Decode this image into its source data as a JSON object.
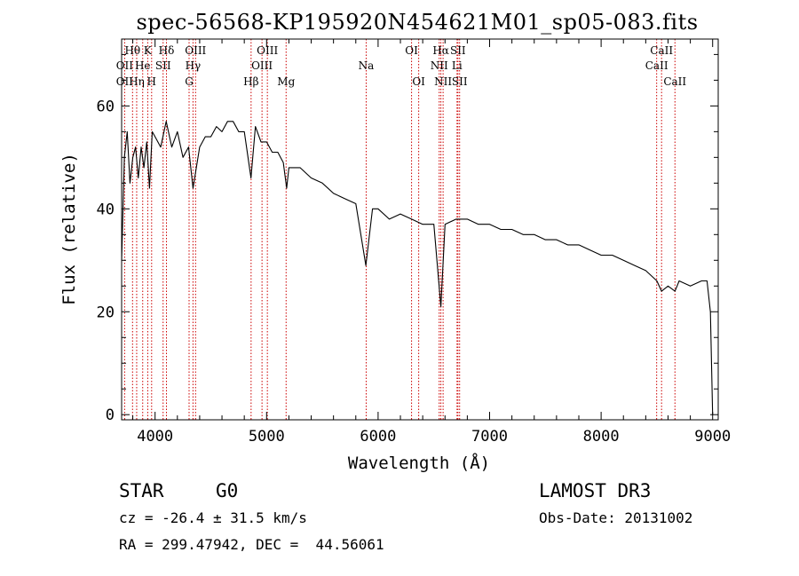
{
  "chart_data": {
    "type": "line",
    "title": "spec-56568-KP195920N454621M01_sp05-083.fits",
    "xlabel": "Wavelength (Å)",
    "ylabel": "Flux (relative)",
    "xlim": [
      3700,
      9050
    ],
    "ylim": [
      -1,
      73
    ],
    "x_ticks": [
      4000,
      5000,
      6000,
      7000,
      8000,
      9000
    ],
    "y_ticks": [
      0,
      20,
      40,
      60
    ],
    "series": [
      {
        "name": "flux",
        "x": [
          3700,
          3725,
          3750,
          3775,
          3800,
          3825,
          3850,
          3875,
          3900,
          3925,
          3950,
          3975,
          4000,
          4050,
          4100,
          4150,
          4200,
          4250,
          4300,
          4340,
          4400,
          4450,
          4500,
          4550,
          4600,
          4650,
          4700,
          4750,
          4800,
          4860,
          4900,
          4950,
          5000,
          5050,
          5100,
          5150,
          5180,
          5200,
          5300,
          5400,
          5500,
          5600,
          5700,
          5800,
          5890,
          5950,
          6000,
          6100,
          6200,
          6300,
          6400,
          6500,
          6563,
          6600,
          6700,
          6800,
          6900,
          7000,
          7100,
          7200,
          7300,
          7400,
          7500,
          7600,
          7700,
          7800,
          7900,
          8000,
          8100,
          8200,
          8300,
          8400,
          8500,
          8542,
          8600,
          8662,
          8700,
          8800,
          8900,
          8950,
          8980,
          9000
        ],
        "y": [
          30,
          50,
          55,
          45,
          50,
          52,
          46,
          52,
          48,
          53,
          44,
          55,
          54,
          52,
          57,
          52,
          55,
          50,
          52,
          44,
          52,
          54,
          54,
          56,
          55,
          57,
          57,
          55,
          55,
          46,
          56,
          53,
          53,
          51,
          51,
          49,
          44,
          48,
          48,
          46,
          45,
          43,
          42,
          41,
          29,
          40,
          40,
          38,
          39,
          38,
          37,
          37,
          21,
          37,
          38,
          38,
          37,
          37,
          36,
          36,
          35,
          35,
          34,
          34,
          33,
          33,
          32,
          31,
          31,
          30,
          29,
          28,
          26,
          24,
          25,
          24,
          26,
          25,
          26,
          26,
          20,
          0
        ]
      }
    ],
    "spectral_lines": [
      {
        "label": "Hθ",
        "wavelength": 3798,
        "row": 1
      },
      {
        "label": "OII",
        "wavelength": 3727,
        "row": 2
      },
      {
        "label": "OII",
        "wavelength": 3727,
        "row": 3
      },
      {
        "label": "Hη",
        "wavelength": 3835,
        "row": 3
      },
      {
        "label": "K",
        "wavelength": 3934,
        "row": 1
      },
      {
        "label": "He",
        "wavelength": 3889,
        "row": 2
      },
      {
        "label": "H",
        "wavelength": 3969,
        "row": 3
      },
      {
        "label": "SII",
        "wavelength": 4072,
        "row": 2
      },
      {
        "label": "Hδ",
        "wavelength": 4102,
        "row": 1
      },
      {
        "label": "OIII",
        "wavelength": 4363,
        "row": 1
      },
      {
        "label": "Hγ",
        "wavelength": 4340,
        "row": 2
      },
      {
        "label": "G",
        "wavelength": 4305,
        "row": 3
      },
      {
        "label": "Hβ",
        "wavelength": 4861,
        "row": 3
      },
      {
        "label": "OIII",
        "wavelength": 5007,
        "row": 1
      },
      {
        "label": "OIII",
        "wavelength": 4959,
        "row": 2
      },
      {
        "label": "Mg",
        "wavelength": 5175,
        "row": 3
      },
      {
        "label": "Na",
        "wavelength": 5893,
        "row": 2
      },
      {
        "label": "OI",
        "wavelength": 6300,
        "row": 1
      },
      {
        "label": "OI",
        "wavelength": 6364,
        "row": 3
      },
      {
        "label": "Hα",
        "wavelength": 6563,
        "row": 1
      },
      {
        "label": "SII",
        "wavelength": 6716,
        "row": 1
      },
      {
        "label": "NII",
        "wavelength": 6548,
        "row": 2
      },
      {
        "label": "Li",
        "wavelength": 6708,
        "row": 2
      },
      {
        "label": "NII",
        "wavelength": 6583,
        "row": 3
      },
      {
        "label": "SII",
        "wavelength": 6731,
        "row": 3
      },
      {
        "label": "CaII",
        "wavelength": 8542,
        "row": 1
      },
      {
        "label": "CaII",
        "wavelength": 8498,
        "row": 2
      },
      {
        "label": "CaII",
        "wavelength": 8662,
        "row": 3
      }
    ]
  },
  "info": {
    "object_class": "STAR",
    "subclass": "G0",
    "survey": "LAMOST DR3",
    "cz": "cz = -26.4 ± 31.5 km/s",
    "obs_date": "Obs-Date: 20131002",
    "radec": "RA = 299.47942, DEC =  44.56061"
  },
  "colors": {
    "line_marker": "#cc0000",
    "spectrum": "#000000",
    "axes": "#000000",
    "background": "#ffffff"
  }
}
